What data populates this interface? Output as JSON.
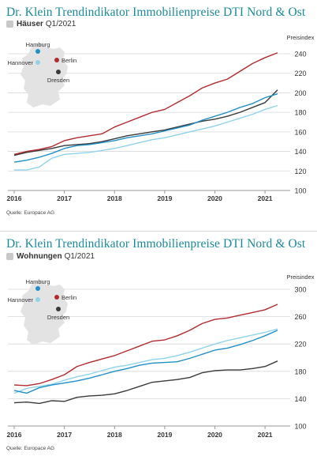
{
  "colors": {
    "Berlin": "#b22a2e",
    "Hamburg": "#1f8fc7",
    "Hannover": "#8fd2ec",
    "Dresden": "#3a3a3a",
    "title": "#1a8a9a",
    "grid": "#d8d8d8",
    "map": "#e3e3e3"
  },
  "panels": [
    {
      "title": "Dr. Klein Trendindikator Immobilienpreise DTI Nord & Ost",
      "subtitle_bold": "Häuser",
      "subtitle_rest": "Q1/2021",
      "source": "Quelle: Europace AG"
    },
    {
      "title": "Dr. Klein Trendindikator Immobilienpreise DTI Nord & Ost",
      "subtitle_bold": "Wohnungen",
      "subtitle_rest": "Q1/2021",
      "source": "Quelle: Europace AG"
    }
  ],
  "chart_data": [
    {
      "type": "line",
      "title": "Dr. Klein Trendindikator Immobilienpreise DTI Nord & Ost",
      "subtitle": "Häuser Q1/2021",
      "ylabel": "Preisindex",
      "ylim": [
        100,
        240
      ],
      "yticks": [
        100,
        120,
        140,
        160,
        180,
        200,
        220,
        240
      ],
      "xlim": [
        2016,
        2021.25
      ],
      "xticks": [
        "2016",
        "2017",
        "2018",
        "2019",
        "2020",
        "2021"
      ],
      "grid": true,
      "legend": "map-inset top-left",
      "x": [
        2016.0,
        2016.25,
        2016.5,
        2016.75,
        2017.0,
        2017.25,
        2017.5,
        2017.75,
        2018.0,
        2018.25,
        2018.5,
        2018.75,
        2019.0,
        2019.25,
        2019.5,
        2019.75,
        2020.0,
        2020.25,
        2020.5,
        2020.75,
        2021.0,
        2021.25
      ],
      "series": [
        {
          "name": "Berlin",
          "values": [
            137,
            140,
            142,
            145,
            151,
            154,
            156,
            158,
            165,
            170,
            175,
            180,
            183,
            190,
            197,
            205,
            210,
            214,
            222,
            230,
            236,
            241
          ]
        },
        {
          "name": "Hamburg",
          "values": [
            129,
            131,
            134,
            138,
            143,
            146,
            147,
            149,
            151,
            154,
            156,
            158,
            161,
            164,
            167,
            172,
            176,
            180,
            185,
            189,
            195,
            199
          ]
        },
        {
          "name": "Hannover",
          "values": [
            121,
            121,
            124,
            133,
            137,
            138,
            139,
            141,
            143,
            146,
            149,
            152,
            154,
            157,
            160,
            163,
            166,
            170,
            174,
            178,
            183,
            187
          ]
        },
        {
          "name": "Dresden",
          "values": [
            136,
            139,
            141,
            143,
            146,
            147,
            148,
            150,
            153,
            156,
            158,
            160,
            162,
            165,
            168,
            171,
            173,
            176,
            180,
            185,
            190,
            203
          ]
        }
      ]
    },
    {
      "type": "line",
      "title": "Dr. Klein Trendindikator Immobilienpreise DTI Nord & Ost",
      "subtitle": "Wohnungen Q1/2021",
      "ylabel": "Preisindex",
      "ylim": [
        100,
        300
      ],
      "yticks": [
        100,
        140,
        180,
        220,
        260,
        300
      ],
      "xlim": [
        2016,
        2021.25
      ],
      "xticks": [
        "2016",
        "2017",
        "2018",
        "2019",
        "2020",
        "2021"
      ],
      "grid": true,
      "legend": "map-inset top-left",
      "x": [
        2016.0,
        2016.25,
        2016.5,
        2016.75,
        2017.0,
        2017.25,
        2017.5,
        2017.75,
        2018.0,
        2018.25,
        2018.5,
        2018.75,
        2019.0,
        2019.25,
        2019.5,
        2019.75,
        2020.0,
        2020.25,
        2020.5,
        2020.75,
        2021.0,
        2021.25
      ],
      "series": [
        {
          "name": "Berlin",
          "values": [
            160,
            159,
            162,
            168,
            175,
            187,
            193,
            198,
            203,
            210,
            217,
            224,
            226,
            232,
            240,
            250,
            256,
            258,
            262,
            266,
            270,
            278
          ]
        },
        {
          "name": "Hamburg",
          "values": [
            152,
            148,
            156,
            160,
            163,
            166,
            170,
            175,
            180,
            184,
            189,
            192,
            193,
            194,
            199,
            205,
            211,
            214,
            219,
            225,
            232,
            240
          ]
        },
        {
          "name": "Hannover",
          "values": [
            148,
            155,
            158,
            161,
            167,
            172,
            176,
            181,
            186,
            189,
            193,
            197,
            199,
            203,
            208,
            214,
            220,
            225,
            229,
            233,
            237,
            242
          ]
        },
        {
          "name": "Dresden",
          "values": [
            134,
            135,
            133,
            137,
            136,
            142,
            144,
            145,
            147,
            152,
            158,
            164,
            166,
            168,
            171,
            178,
            181,
            182,
            182,
            184,
            187,
            195
          ]
        }
      ]
    }
  ]
}
